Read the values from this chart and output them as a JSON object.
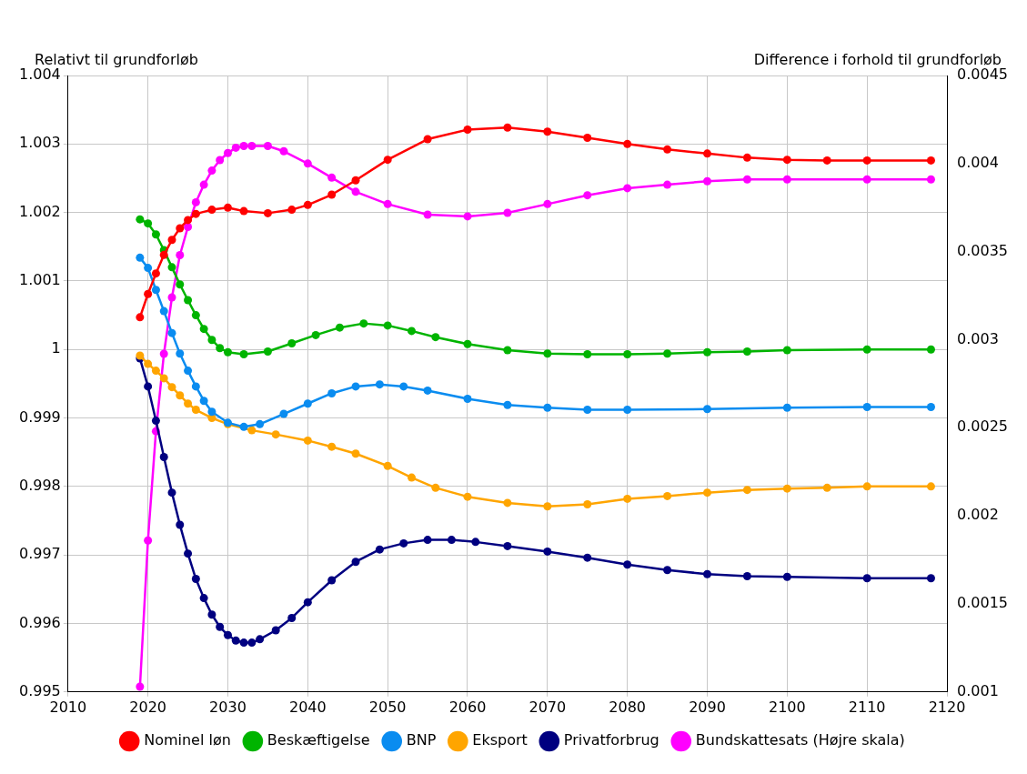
{
  "chart_data": {
    "type": "line",
    "ylabel": "Relativt til grundforløb",
    "y2label": "Difference i forhold til grundforløb",
    "xlim": [
      2010,
      2120
    ],
    "xticks": [
      2010,
      2020,
      2030,
      2040,
      2050,
      2060,
      2070,
      2080,
      2090,
      2100,
      2110,
      2120
    ],
    "ylim": [
      0.995,
      1.004
    ],
    "yticks": [
      0.995,
      0.996,
      0.997,
      0.998,
      0.999,
      1,
      1.001,
      1.002,
      1.003,
      1.004
    ],
    "y2lim": [
      0.001,
      0.0045
    ],
    "y2ticks": [
      0.001,
      0.0015,
      0.002,
      0.0025,
      0.003,
      0.0035,
      0.004,
      0.0045
    ],
    "grid": true,
    "legend": "bottom",
    "marker": "circle",
    "line_style": "solid",
    "series": [
      {
        "name": "Nominel løn",
        "color": "#ff0000",
        "x": [
          2019,
          2020,
          2021,
          2022,
          2023,
          2024,
          2025,
          2026,
          2028,
          2030,
          2032,
          2035,
          2038,
          2040,
          2043,
          2046,
          2050,
          2055,
          2060,
          2065,
          2070,
          2075,
          2080,
          2085,
          2090,
          2095,
          2100,
          2105,
          2110,
          2118
        ],
        "values": [
          1.00047,
          1.00081,
          1.00111,
          1.00138,
          1.0016,
          1.00177,
          1.00189,
          1.00198,
          1.00204,
          1.00207,
          1.00202,
          1.00199,
          1.00204,
          1.00211,
          1.00226,
          1.00247,
          1.00277,
          1.00307,
          1.00321,
          1.00324,
          1.00318,
          1.00309,
          1.003,
          1.00292,
          1.00286,
          1.0028,
          1.00277,
          1.00276,
          1.00276,
          1.00276
        ]
      },
      {
        "name": "Beskæftigelse",
        "color": "#00b400",
        "x": [
          2019,
          2020,
          2021,
          2022,
          2023,
          2024,
          2025,
          2026,
          2027,
          2028,
          2029,
          2030,
          2032,
          2035,
          2038,
          2041,
          2044,
          2047,
          2050,
          2053,
          2056,
          2060,
          2065,
          2070,
          2075,
          2080,
          2085,
          2090,
          2095,
          2100,
          2110,
          2118
        ],
        "values": [
          1.0019,
          1.00184,
          1.00168,
          1.00145,
          1.0012,
          1.00095,
          1.00072,
          1.0005,
          1.0003,
          1.00014,
          1.00002,
          0.99996,
          0.99993,
          0.99997,
          1.00009,
          1.00021,
          1.00032,
          1.00038,
          1.00035,
          1.00027,
          1.00018,
          1.00008,
          0.99999,
          0.99994,
          0.99993,
          0.99993,
          0.99994,
          0.99996,
          0.99997,
          0.99999,
          1,
          1
        ]
      },
      {
        "name": "BNP",
        "color": "#0a8cf0",
        "x": [
          2019,
          2020,
          2021,
          2022,
          2023,
          2024,
          2025,
          2026,
          2027,
          2028,
          2030,
          2032,
          2034,
          2037,
          2040,
          2043,
          2046,
          2049,
          2052,
          2055,
          2060,
          2065,
          2070,
          2075,
          2080,
          2090,
          2100,
          2110,
          2118
        ],
        "values": [
          1.00134,
          1.00119,
          1.00087,
          1.00056,
          1.00024,
          0.99994,
          0.99969,
          0.99946,
          0.99925,
          0.99909,
          0.99893,
          0.99887,
          0.99891,
          0.99906,
          0.99921,
          0.99936,
          0.99946,
          0.99949,
          0.99946,
          0.9994,
          0.99928,
          0.99919,
          0.99915,
          0.99912,
          0.99912,
          0.99913,
          0.99915,
          0.99916,
          0.99916
        ]
      },
      {
        "name": "Eksport",
        "color": "#ffa500",
        "x": [
          2019,
          2020,
          2021,
          2022,
          2023,
          2024,
          2025,
          2026,
          2028,
          2030,
          2033,
          2036,
          2040,
          2043,
          2046,
          2050,
          2053,
          2056,
          2060,
          2065,
          2070,
          2075,
          2080,
          2085,
          2090,
          2095,
          2100,
          2105,
          2110,
          2118
        ],
        "values": [
          0.99991,
          0.99979,
          0.99969,
          0.99958,
          0.99945,
          0.99933,
          0.99921,
          0.99912,
          0.999,
          0.99891,
          0.99882,
          0.99876,
          0.99867,
          0.99858,
          0.99848,
          0.9983,
          0.99813,
          0.99798,
          0.99785,
          0.99776,
          0.99771,
          0.99774,
          0.99782,
          0.99786,
          0.99791,
          0.99795,
          0.99797,
          0.99798,
          0.998,
          0.998
        ]
      },
      {
        "name": "Privatforbrug",
        "color": "#000080",
        "x": [
          2019,
          2020,
          2021,
          2022,
          2023,
          2024,
          2025,
          2026,
          2027,
          2028,
          2029,
          2030,
          2031,
          2032,
          2033,
          2034,
          2036,
          2038,
          2040,
          2043,
          2046,
          2049,
          2052,
          2055,
          2058,
          2061,
          2065,
          2070,
          2075,
          2080,
          2085,
          2090,
          2095,
          2100,
          2110,
          2118
        ],
        "values": [
          0.99987,
          0.99946,
          0.99896,
          0.99843,
          0.99791,
          0.99744,
          0.99702,
          0.99665,
          0.99637,
          0.99613,
          0.99595,
          0.99583,
          0.99575,
          0.99572,
          0.99572,
          0.99577,
          0.9959,
          0.99608,
          0.99631,
          0.99663,
          0.9969,
          0.99708,
          0.99717,
          0.99722,
          0.99722,
          0.99719,
          0.99713,
          0.99705,
          0.99696,
          0.99686,
          0.99678,
          0.99672,
          0.99669,
          0.99668,
          0.99666,
          0.99666
        ]
      },
      {
        "name": "Bundskattesats (Højre skala)",
        "color": "#ff00ff",
        "axis": "y2",
        "x": [
          2019,
          2020,
          2021,
          2022,
          2023,
          2024,
          2025,
          2026,
          2027,
          2028,
          2029,
          2030,
          2031,
          2032,
          2033,
          2035,
          2037,
          2040,
          2043,
          2046,
          2050,
          2055,
          2060,
          2065,
          2070,
          2075,
          2080,
          2085,
          2090,
          2095,
          2100,
          2110,
          2118
        ],
        "values": [
          0.00103,
          0.00186,
          0.00248,
          0.00292,
          0.00324,
          0.00348,
          0.00364,
          0.00378,
          0.00388,
          0.00396,
          0.00402,
          0.00406,
          0.00409,
          0.0041,
          0.0041,
          0.0041,
          0.00407,
          0.004,
          0.00392,
          0.00384,
          0.00377,
          0.00371,
          0.0037,
          0.00372,
          0.00377,
          0.00382,
          0.00386,
          0.00388,
          0.0039,
          0.00391,
          0.00391,
          0.00391,
          0.00391
        ]
      }
    ]
  }
}
